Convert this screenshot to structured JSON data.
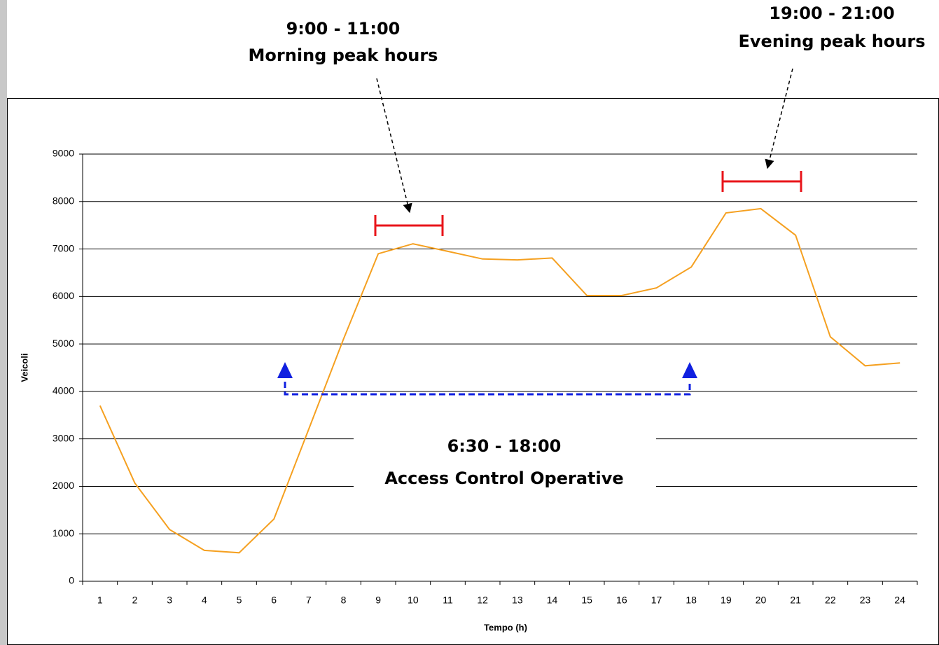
{
  "chart_data": {
    "type": "line",
    "categories": [
      "1",
      "2",
      "3",
      "4",
      "5",
      "6",
      "7",
      "8",
      "9",
      "10",
      "11",
      "12",
      "13",
      "14",
      "15",
      "16",
      "17",
      "18",
      "19",
      "20",
      "21",
      "22",
      "23",
      "24"
    ],
    "series": [
      {
        "name": "Veicoli",
        "color": "#f5a020",
        "values": [
          3700,
          2070,
          1090,
          650,
          600,
          1310,
          3200,
          5100,
          6900,
          7110,
          6950,
          6790,
          6770,
          6810,
          6020,
          6020,
          6180,
          6620,
          7760,
          7850,
          7290,
          5150,
          4540,
          4600
        ]
      }
    ],
    "xlabel": "Tempo (h)",
    "ylabel": "Veicoli",
    "ylim": [
      0,
      9000
    ],
    "yticks": [
      0,
      1000,
      2000,
      3000,
      4000,
      5000,
      6000,
      7000,
      8000,
      9000
    ],
    "grid": true,
    "annotations": [
      [
        "9:00 - 11:00",
        "Morning peak hours"
      ],
      [
        "19:00 - 21:00",
        "Evening peak hours"
      ],
      [
        "6:30 - 18:00",
        "Access Control Operative"
      ]
    ]
  }
}
